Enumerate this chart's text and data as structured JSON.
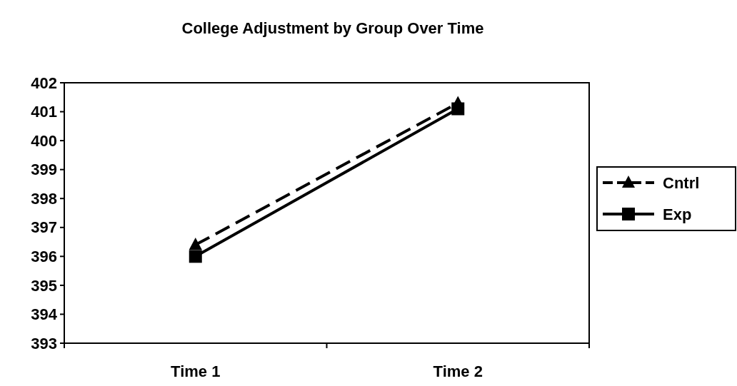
{
  "chart_data": {
    "type": "line",
    "title": "College Adjustment by Group Over Time",
    "categories": [
      "Time 1",
      "Time 2"
    ],
    "series": [
      {
        "name": "Cntrl",
        "color": "#000000",
        "values": [
          396.4,
          401.3
        ],
        "marker": "triangle",
        "line_style": "dashed"
      },
      {
        "name": "Exp",
        "color": "#000000",
        "values": [
          396.0,
          401.1
        ],
        "marker": "square",
        "line_style": "solid"
      }
    ],
    "ylim": [
      393,
      402
    ],
    "yticks": [
      393,
      394,
      395,
      396,
      397,
      398,
      399,
      400,
      401,
      402
    ],
    "grid": false,
    "legend": "right"
  }
}
